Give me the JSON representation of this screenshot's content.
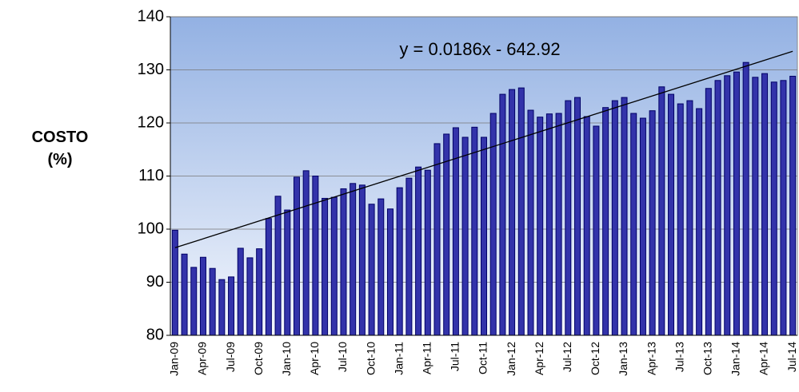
{
  "chart_data": {
    "type": "bar",
    "ylabel": "COSTO (%)",
    "categories": [
      "Jan-09",
      null,
      null,
      "Apr-09",
      null,
      null,
      "Jul-09",
      null,
      null,
      "Oct-09",
      null,
      null,
      "Jan-10",
      null,
      null,
      "Apr-10",
      null,
      null,
      "Jul-10",
      null,
      null,
      "Oct-10",
      null,
      null,
      "Jan-11",
      null,
      null,
      "Apr-11",
      null,
      null,
      "Jul-11",
      null,
      null,
      "Oct-11",
      null,
      null,
      "Jan-12",
      null,
      null,
      "Apr-12",
      null,
      null,
      "Jul-12",
      null,
      null,
      "Oct-12",
      null,
      null,
      "Jan-13",
      null,
      null,
      "Apr-13",
      null,
      null,
      "Jul-13",
      null,
      null,
      "Oct-13",
      null,
      null,
      "Jan-14",
      null,
      null,
      "Apr-14",
      null,
      null,
      "Jul-14"
    ],
    "values": [
      99.8,
      95.3,
      92.8,
      94.7,
      92.6,
      90.5,
      91,
      96.4,
      94.6,
      96.3,
      102,
      106.2,
      103.6,
      109.8,
      111,
      110,
      105.8,
      106,
      107.6,
      108.6,
      108.3,
      104.7,
      105.7,
      103.8,
      107.8,
      109.6,
      111.7,
      111.1,
      116.1,
      117.9,
      119.1,
      117.3,
      119.2,
      117.3,
      121.8,
      125.4,
      126.3,
      126.6,
      122.4,
      121.1,
      121.7,
      121.8,
      124.2,
      124.8,
      121.2,
      119.4,
      122.9,
      124.2,
      124.8,
      121.8,
      120.9,
      122.3,
      126.8,
      125.4,
      123.6,
      124.2,
      122.7,
      126.5,
      128,
      128.9,
      129.6,
      131.4,
      128.6,
      129.3,
      127.7,
      128,
      128.8
    ],
    "color": "#3333aa",
    "ylim": [
      80,
      140
    ],
    "yticks": [
      80,
      90,
      100,
      110,
      120,
      130,
      140
    ],
    "grid": true,
    "trendline": {
      "label": "y = 0.0186x - 642.92",
      "start": 96.5,
      "end": 133.5
    }
  }
}
